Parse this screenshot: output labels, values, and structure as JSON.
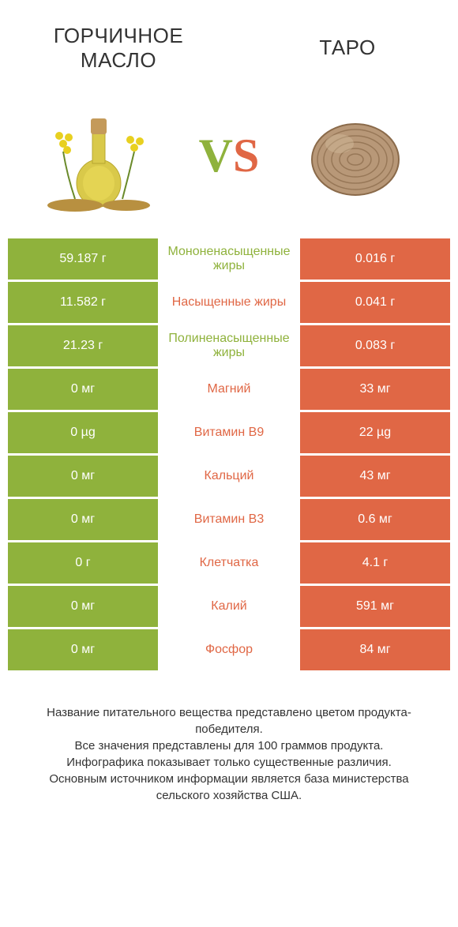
{
  "header": {
    "left_title": "ГОРЧИЧНОЕ МАСЛО",
    "right_title": "ТАРО",
    "vs_v": "V",
    "vs_s": "S"
  },
  "colors": {
    "green": "#8fb23c",
    "orange": "#e06745",
    "green_text": "#8fb23c",
    "orange_text": "#e06745",
    "white": "#ffffff",
    "footer_text": "#333333"
  },
  "rows": [
    {
      "left": "59.187 г",
      "mid": "Мононенасыщенные жиры",
      "right": "0.016 г",
      "winner": "left"
    },
    {
      "left": "11.582 г",
      "mid": "Насыщенные жиры",
      "right": "0.041 г",
      "winner": "right"
    },
    {
      "left": "21.23 г",
      "mid": "Полиненасыщенные жиры",
      "right": "0.083 г",
      "winner": "left"
    },
    {
      "left": "0 мг",
      "mid": "Магний",
      "right": "33 мг",
      "winner": "right"
    },
    {
      "left": "0 µg",
      "mid": "Витамин B9",
      "right": "22 µg",
      "winner": "right"
    },
    {
      "left": "0 мг",
      "mid": "Кальций",
      "right": "43 мг",
      "winner": "right"
    },
    {
      "left": "0 мг",
      "mid": "Витамин B3",
      "right": "0.6 мг",
      "winner": "right"
    },
    {
      "left": "0 г",
      "mid": "Клетчатка",
      "right": "4.1 г",
      "winner": "right"
    },
    {
      "left": "0 мг",
      "mid": "Калий",
      "right": "591 мг",
      "winner": "right"
    },
    {
      "left": "0 мг",
      "mid": "Фосфор",
      "right": "84 мг",
      "winner": "right"
    }
  ],
  "footer": {
    "line1": "Название питательного вещества представлено цветом продукта-победителя.",
    "line2": "Все значения представлены для 100 граммов продукта.",
    "line3": "Инфографика показывает только существенные различия.",
    "line4": "Основным источником информации является база министерства сельского хозяйства США."
  }
}
